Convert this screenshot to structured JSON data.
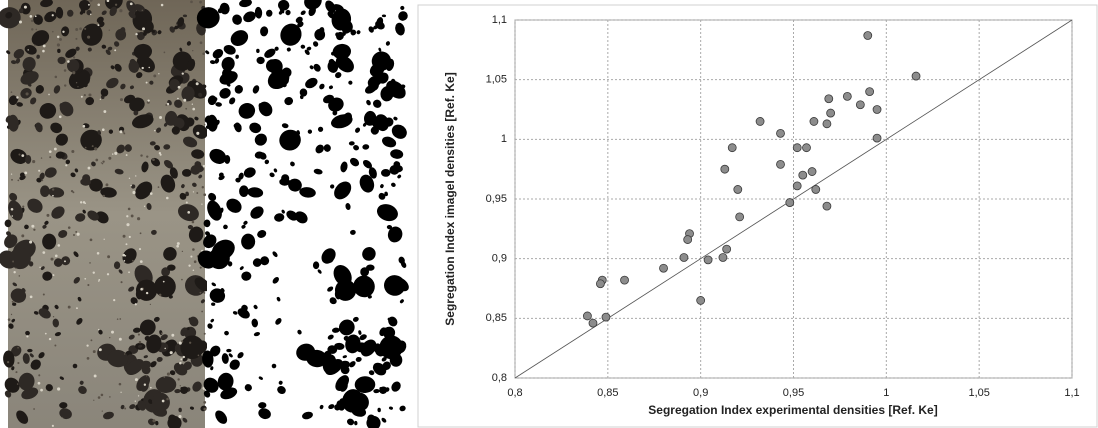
{
  "chart_data": {
    "type": "scatter",
    "x_label": "Segregation Index experimental densities [Ref. Ke]",
    "y_label": "Segregation Index imageI densities [Ref. Ke]",
    "x": [
      0.99,
      1.016,
      0.979,
      0.969,
      0.991,
      0.986,
      0.995,
      0.97,
      0.961,
      0.968,
      0.932,
      0.943,
      0.995,
      0.917,
      0.952,
      0.957,
      0.943,
      0.913,
      0.96,
      0.955,
      0.952,
      0.962,
      0.92,
      0.948,
      0.968,
      0.921,
      0.894,
      0.893,
      0.914,
      0.891,
      0.912,
      0.904,
      0.88,
      0.9,
      0.859,
      0.847,
      0.846,
      0.849,
      0.839,
      0.842
    ],
    "y": [
      1.087,
      1.053,
      1.036,
      1.034,
      1.04,
      1.029,
      1.025,
      1.022,
      1.015,
      1.013,
      1.015,
      1.005,
      1.001,
      0.993,
      0.993,
      0.993,
      0.979,
      0.975,
      0.973,
      0.97,
      0.961,
      0.958,
      0.958,
      0.947,
      0.944,
      0.935,
      0.921,
      0.916,
      0.908,
      0.901,
      0.901,
      0.899,
      0.892,
      0.865,
      0.882,
      0.882,
      0.879,
      0.851,
      0.852,
      0.846
    ],
    "color": "#8c8c8c",
    "xlim": [
      0.8,
      1.1
    ],
    "ylim": [
      0.8,
      1.1
    ],
    "xticks": [
      {
        "value": 0.8,
        "label": "0,8"
      },
      {
        "value": 0.85,
        "label": "0,85"
      },
      {
        "value": 0.9,
        "label": "0,9"
      },
      {
        "value": 0.95,
        "label": "0,95"
      },
      1,
      {
        "value": 1.05,
        "label": "1,05"
      },
      {
        "value": 1.1,
        "label": "1,1"
      }
    ],
    "yticks": [
      {
        "value": 0.8,
        "label": "0,8"
      },
      {
        "value": 0.85,
        "label": "0,85"
      },
      {
        "value": 0.9,
        "label": "0,9"
      },
      {
        "value": 0.95,
        "label": "0,95"
      },
      1,
      {
        "value": 1.05,
        "label": "1,05"
      },
      {
        "value": 1.1,
        "label": "1,1"
      }
    ],
    "grid": true,
    "diagonal": true
  }
}
